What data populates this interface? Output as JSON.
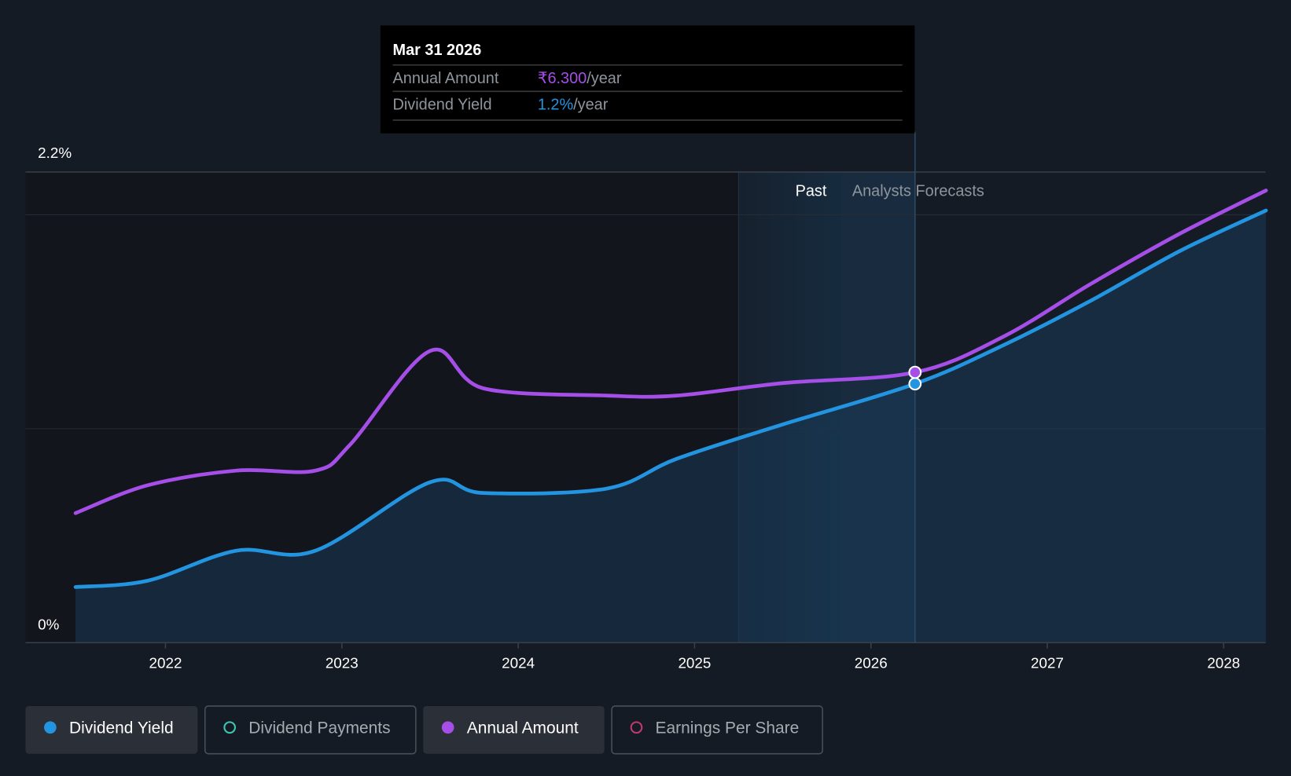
{
  "tooltip": {
    "date": "Mar 31 2026",
    "rows": [
      {
        "label": "Annual Amount",
        "value": "₹6.300",
        "unit": "/year",
        "color": "#a54ee8"
      },
      {
        "label": "Dividend Yield",
        "value": "1.2%",
        "unit": "/year",
        "color": "#2394e0"
      }
    ]
  },
  "regions": {
    "past_label": "Past",
    "forecast_label": "Analysts Forecasts"
  },
  "legend": [
    {
      "label": "Dividend Yield",
      "color": "#2394e0",
      "filled": true,
      "active": true
    },
    {
      "label": "Dividend Payments",
      "color": "#3fc6b4",
      "filled": false,
      "active": false
    },
    {
      "label": "Annual Amount",
      "color": "#a54ee8",
      "filled": true,
      "active": true
    },
    {
      "label": "Earnings Per Share",
      "color": "#c2386f",
      "filled": false,
      "active": false
    }
  ],
  "chart_data": {
    "type": "line",
    "title": "",
    "xlabel": "",
    "ylabel": "Dividend Yield",
    "x_ticks": [
      "2022",
      "2023",
      "2024",
      "2025",
      "2026",
      "2027",
      "2028"
    ],
    "x_range": [
      2021.2,
      2028.24
    ],
    "y_ticks": [
      "0%",
      "2.2%"
    ],
    "ylim": [
      0,
      2.2
    ],
    "annual_amount_ylim": [
      0,
      10.97
    ],
    "past_end": 2025.83,
    "past_shade_start": 2025.25,
    "tooltip_x": 2026.25,
    "series": [
      {
        "name": "Dividend Yield",
        "unit": "%",
        "color": "#2394e0",
        "area": true,
        "x": [
          2021.49,
          2021.9,
          2022.4,
          2022.85,
          2023.5,
          2023.8,
          2024.5,
          2024.9,
          2025.5,
          2026.25,
          2026.75,
          2027.25,
          2027.75,
          2028.24
        ],
        "y": [
          0.26,
          0.29,
          0.43,
          0.43,
          0.75,
          0.7,
          0.72,
          0.86,
          1.02,
          1.21,
          1.39,
          1.6,
          1.83,
          2.02
        ]
      },
      {
        "name": "Annual Amount",
        "unit": "₹",
        "color": "#a54ee8",
        "area": false,
        "x": [
          2021.49,
          2021.9,
          2022.4,
          2022.85,
          2023.05,
          2023.5,
          2023.8,
          2024.5,
          2024.9,
          2025.5,
          2026.25,
          2026.75,
          2027.25,
          2027.75,
          2028.24
        ],
        "y": [
          3.02,
          3.67,
          4.01,
          4.01,
          4.63,
          6.8,
          5.93,
          5.76,
          5.76,
          6.05,
          6.3,
          7.13,
          8.37,
          9.53,
          10.54
        ]
      }
    ]
  }
}
